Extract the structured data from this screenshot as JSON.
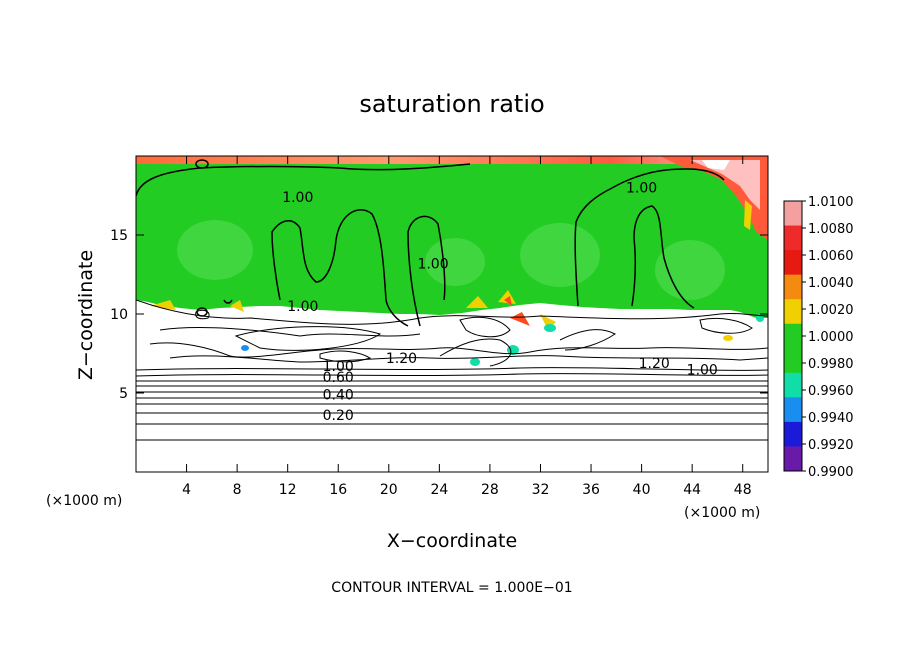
{
  "chart_data": {
    "type": "contour",
    "title": "saturation ratio",
    "xlabel": "X−coordinate",
    "ylabel": "Z−coordinate",
    "x_unit": "(×1000 m)",
    "z_unit": "(×1000 m)",
    "xlim": [
      0,
      50
    ],
    "ylim": [
      0,
      20
    ],
    "x_ticks": [
      4,
      8,
      12,
      16,
      20,
      24,
      28,
      32,
      36,
      40,
      44,
      48
    ],
    "y_ticks": [
      5,
      10,
      15
    ],
    "footer": "CONTOUR INTERVAL = 1.000E−01",
    "contour_labels": [
      {
        "text": "1.00",
        "x": 12.8,
        "z": 17.4
      },
      {
        "text": "1.00",
        "x": 40.0,
        "z": 18.0
      },
      {
        "text": "1.00",
        "x": 23.5,
        "z": 13.2
      },
      {
        "text": "1.00",
        "x": 13.2,
        "z": 10.5
      },
      {
        "text": "1.20",
        "x": 21.0,
        "z": 7.2
      },
      {
        "text": "1.20",
        "x": 41.0,
        "z": 6.9
      },
      {
        "text": "1.00",
        "x": 44.8,
        "z": 6.5
      },
      {
        "text": "1.00",
        "x": 16.0,
        "z": 6.7
      },
      {
        "text": "0.60",
        "x": 16.0,
        "z": 6.0
      },
      {
        "text": "0.40",
        "x": 16.0,
        "z": 4.9
      },
      {
        "text": "0.20",
        "x": 16.0,
        "z": 3.6
      }
    ],
    "colorbar": {
      "labels": [
        "1.0100",
        "1.0080",
        "1.0060",
        "1.0040",
        "1.0020",
        "1.0000",
        "0.9980",
        "0.9960",
        "0.9940",
        "0.9920",
        "0.9900"
      ],
      "colors": [
        "#f4a0a0",
        "#ee2a2a",
        "#e61a10",
        "#f48a10",
        "#f0d000",
        "#22cc22",
        "#22cc22",
        "#11dda8",
        "#1a8ef0",
        "#1a1ad8",
        "#6a1aa8"
      ]
    }
  }
}
